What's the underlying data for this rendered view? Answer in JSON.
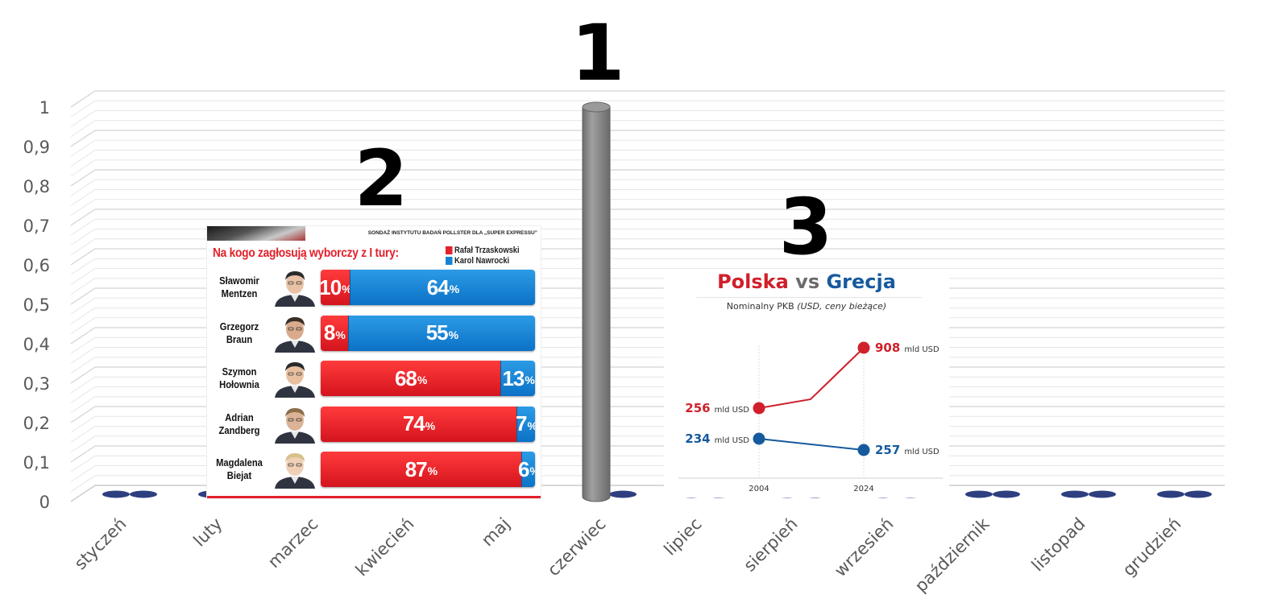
{
  "chart_data": [
    {
      "type": "bar",
      "categories": [
        "styczeń",
        "luty",
        "marzec",
        "kwiecień",
        "maj",
        "czerwiec",
        "lipiec",
        "sierpień",
        "wrzesień",
        "październik",
        "listopad",
        "grudzień"
      ],
      "values": [
        0,
        0,
        0,
        0,
        0,
        1,
        0,
        0,
        0,
        0,
        0,
        0
      ],
      "ylim": [
        0,
        1
      ],
      "yticks": [
        "0",
        "0,1",
        "0,2",
        "0,3",
        "0,4",
        "0,5",
        "0,6",
        "0,7",
        "0,8",
        "0,9",
        "1"
      ],
      "grid": true,
      "bar_color": "#7f7f7f",
      "zero_marker_color": "#2e3f80"
    },
    {
      "type": "bar",
      "stacked": true,
      "source": "SONDAŻ INSTYTUTU BADAŃ POLLSTER DLA „SUPER EXPRESSU”",
      "title": "Na kogo zagłosują wyborczy z I tury:",
      "categories": [
        "Sławomir Mentzen",
        "Grzegorz Braun",
        "Szymon Hołownia",
        "Adrian Zandberg",
        "Magdalena Biejat"
      ],
      "category_lines": [
        [
          "Sławomir",
          "Mentzen"
        ],
        [
          "Grzegorz",
          "Braun"
        ],
        [
          "Szymon",
          "Hołownia"
        ],
        [
          "Adrian",
          "Zandberg"
        ],
        [
          "Magdalena",
          "Biejat"
        ]
      ],
      "series": [
        {
          "name": "Rafał Trzaskowski",
          "color": "#e3202b",
          "values": [
            10,
            8,
            68,
            74,
            87
          ]
        },
        {
          "name": "Karol Nawrocki",
          "color": "#1483d4",
          "values": [
            64,
            55,
            13,
            7,
            6
          ]
        }
      ],
      "unit": "%"
    },
    {
      "type": "line",
      "title_parts": [
        "Polska",
        " vs ",
        "Grecja"
      ],
      "subtitle_main": "Nominalny PKB ",
      "subtitle_paren": "(USD, ceny bieżące)",
      "x": [
        "2004",
        "2024"
      ],
      "series": [
        {
          "name": "Polska",
          "color": "#d0202b",
          "values": [
            256,
            908
          ],
          "labels": [
            "256",
            "908"
          ]
        },
        {
          "name": "Grecja",
          "color": "#165a9e",
          "values": [
            234,
            257
          ],
          "labels": [
            "234",
            "257"
          ]
        }
      ],
      "unit": "mld USD"
    }
  ],
  "callouts": [
    "1",
    "2",
    "3"
  ]
}
